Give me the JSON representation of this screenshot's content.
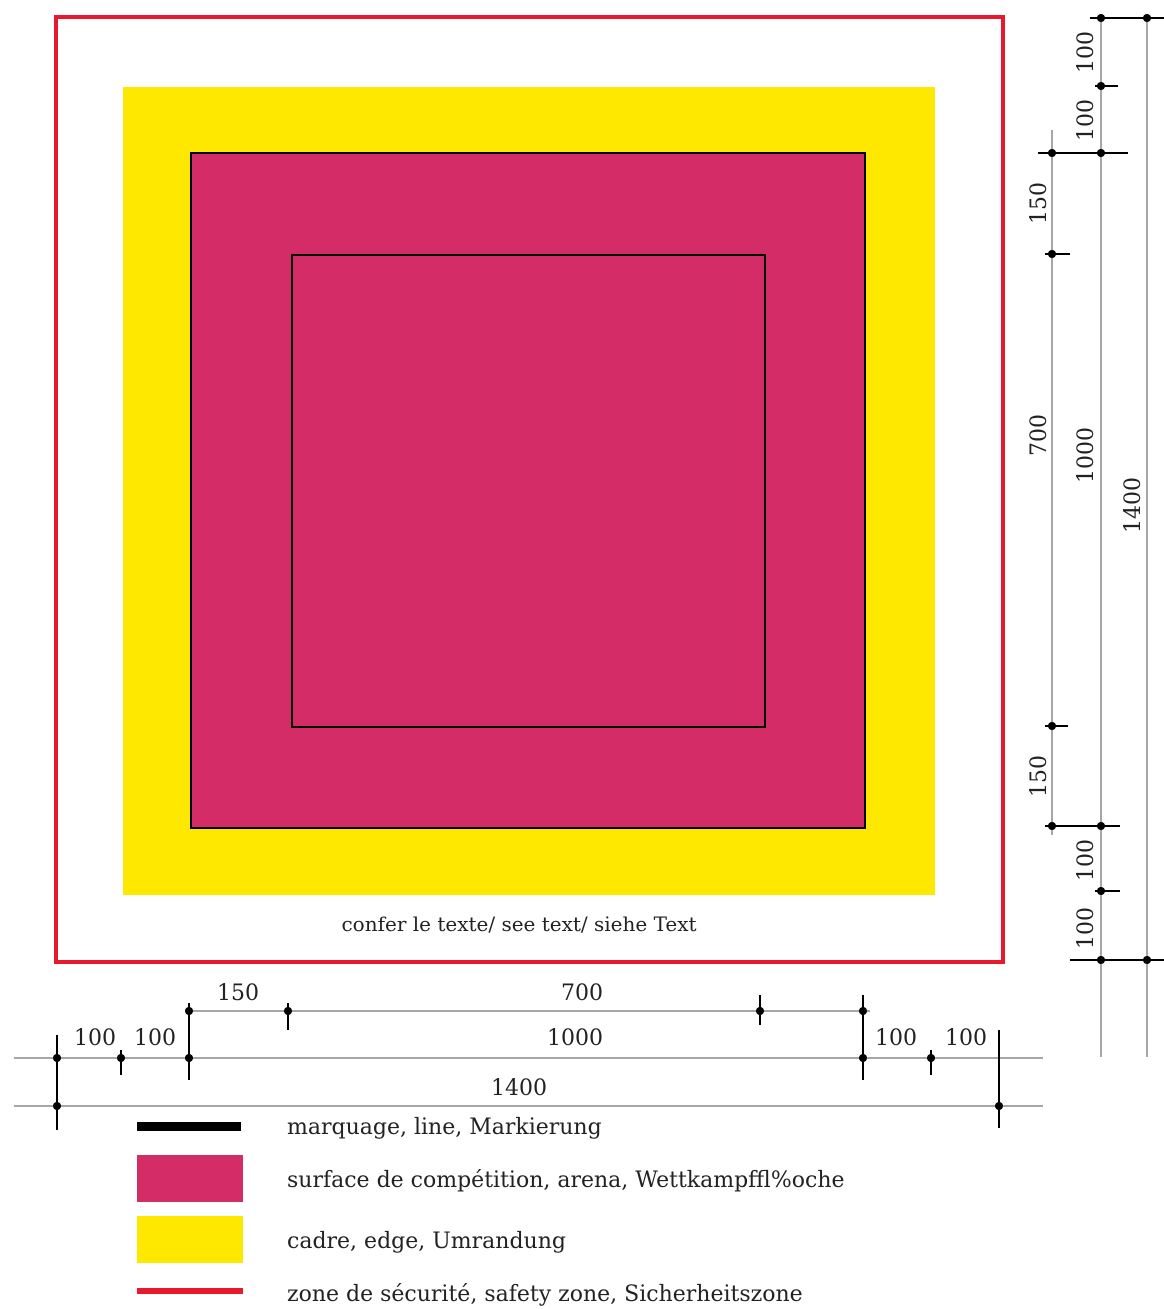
{
  "colors": {
    "safety_zone": "#e8192c",
    "edge": "#ffe800",
    "arena": "#d42c66",
    "line": "#000000",
    "dimension_line": "#888888"
  },
  "diagram": {
    "note": "confer le texte/ see text/ siehe Text",
    "dimensions_horizontal": {
      "row1": [
        "150",
        "700"
      ],
      "row2": [
        "100",
        "100",
        "1000",
        "100",
        "100"
      ],
      "row3": [
        "1400"
      ]
    },
    "dimensions_vertical": {
      "col1": [
        "150",
        "700",
        "150"
      ],
      "col2": [
        "100",
        "100",
        "1000",
        "100",
        "100"
      ],
      "col3": [
        "1400"
      ]
    }
  },
  "legend": [
    {
      "label": "marquage,  line,  Markierung",
      "swatch": "line-black"
    },
    {
      "label": "surface de compétition,  arena,  Wettkampffl%oche",
      "swatch": "arena"
    },
    {
      "label": "cadre,  edge,  Umrandung",
      "swatch": "edge"
    },
    {
      "label": "zone de sécurité,  safety zone,  Sicherheitszone",
      "swatch": "line-red"
    }
  ]
}
